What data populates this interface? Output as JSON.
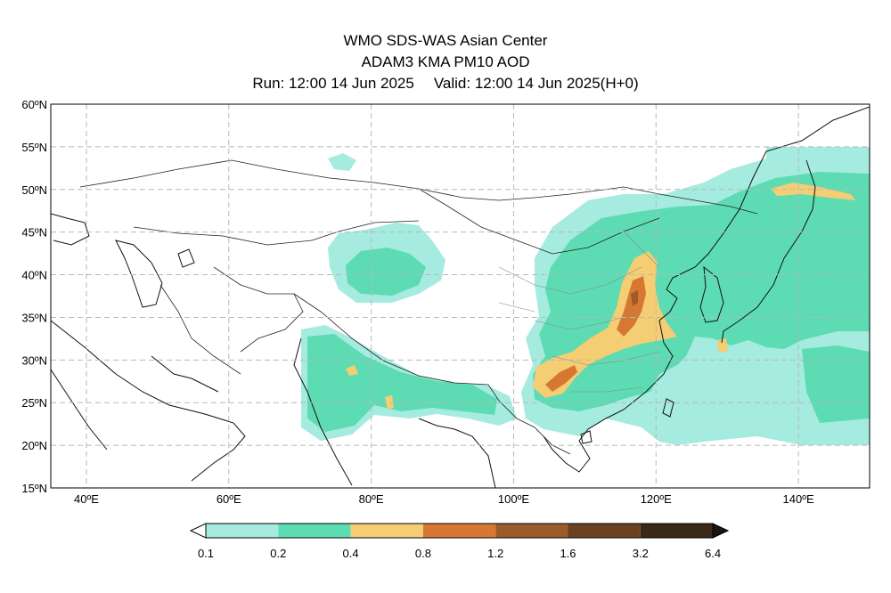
{
  "header": {
    "title": "WMO SDS-WAS Asian Center",
    "product": "ADAM3 KMA PM10 AOD",
    "run_label": "Run: 12:00 14 Jun 2025",
    "valid_label": "Valid: 12:00 14 Jun 2025(H+0)"
  },
  "map": {
    "lon_range": [
      35,
      150
    ],
    "lat_range": [
      15,
      60
    ],
    "lat_labels": [
      "60ºN",
      "55ºN",
      "50ºN",
      "45ºN",
      "40ºN",
      "35ºN",
      "30ºN",
      "25ºN",
      "20ºN",
      "15ºN"
    ],
    "lon_labels": [
      "40ºE",
      "60ºE",
      "80ºE",
      "100ºE",
      "120ºE",
      "140ºE"
    ],
    "grid_lons": [
      40,
      60,
      80,
      100,
      120,
      140
    ],
    "grid_lats": [
      20,
      25,
      30,
      35,
      40,
      45,
      50,
      55
    ]
  },
  "colorbar": {
    "ticks": [
      "0.1",
      "0.2",
      "0.4",
      "0.8",
      "1.2",
      "1.6",
      "3.2",
      "6.4"
    ],
    "colors": [
      "#a5ebe0",
      "#5ddbb3",
      "#f5cd72",
      "#d67833",
      "#9c5c2a",
      "#6b421f",
      "#3a2818"
    ]
  },
  "legend_colors": {
    "aod_0_1_to_0_2": "#a5ebe0",
    "aod_0_2_to_0_4": "#5ddbb3",
    "aod_0_4_to_0_8": "#f5cd72",
    "aod_0_8_to_1_2": "#d67833",
    "aod_1_2_to_1_6": "#9c5c2a"
  }
}
